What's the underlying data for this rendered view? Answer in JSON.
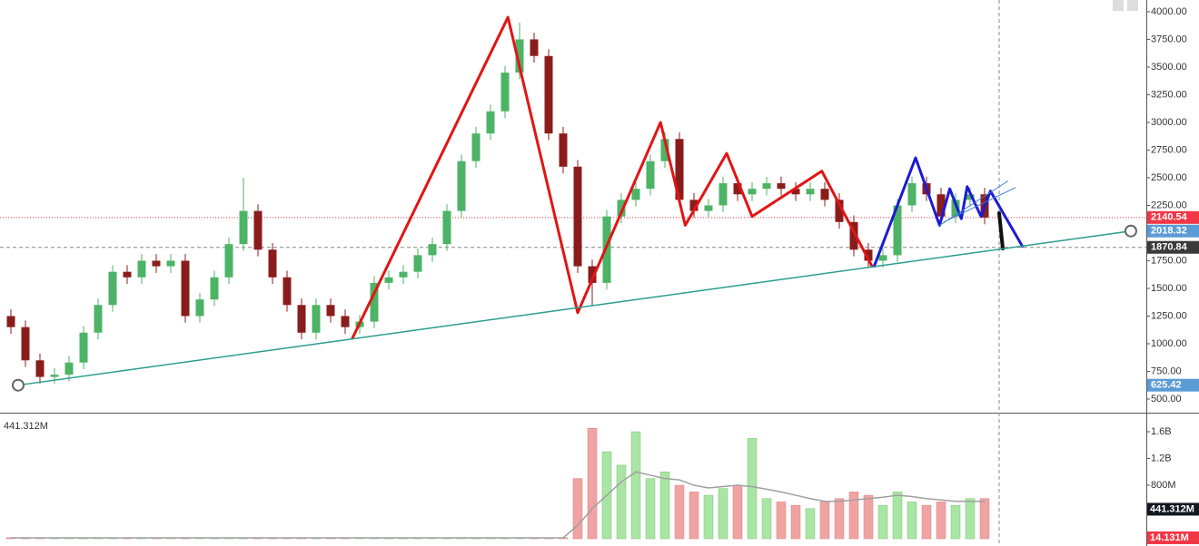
{
  "chart_data": {
    "type": "candlestick",
    "open": [
      1250,
      1150,
      850,
      700,
      720,
      830,
      1100,
      1350,
      1650,
      1600,
      1750,
      1700,
      1750,
      1250,
      1400,
      1600,
      1900,
      2200,
      1850,
      1600,
      1350,
      1100,
      1350,
      1250,
      1150,
      1200,
      1550,
      1600,
      1650,
      1800,
      1900,
      2200,
      2650,
      2900,
      3100,
      3450,
      3750,
      3600,
      2900,
      2600,
      1700,
      1550,
      2150,
      2300,
      2400,
      2650,
      2850,
      2300,
      2200,
      2250,
      2450,
      2350,
      2400,
      2450,
      2400,
      2350,
      2400,
      2300,
      2100,
      1850,
      1750,
      1800,
      2250,
      2450,
      2350,
      2150,
      2300,
      2350
    ],
    "high": [
      1310,
      1210,
      910,
      780,
      890,
      1160,
      1410,
      1710,
      1710,
      1810,
      1810,
      1810,
      1810,
      1460,
      1660,
      1960,
      2500,
      2260,
      1910,
      1660,
      1410,
      1410,
      1410,
      1310,
      1260,
      1610,
      1660,
      1710,
      1860,
      1960,
      2260,
      2710,
      2960,
      3160,
      3510,
      3900,
      3810,
      3660,
      2960,
      2660,
      1760,
      2210,
      2360,
      2460,
      2710,
      2910,
      2910,
      2360,
      2310,
      2510,
      2510,
      2460,
      2510,
      2510,
      2460,
      2460,
      2460,
      2360,
      2160,
      1910,
      1860,
      2310,
      2510,
      2510,
      2410,
      2360,
      2410,
      2410
    ],
    "low": [
      1090,
      790,
      640,
      640,
      660,
      770,
      1040,
      1290,
      1540,
      1540,
      1640,
      1640,
      1190,
      1190,
      1340,
      1540,
      1840,
      1790,
      1540,
      1290,
      1040,
      1040,
      1190,
      1090,
      1090,
      1140,
      1490,
      1540,
      1590,
      1740,
      1840,
      2140,
      2590,
      2840,
      3040,
      3390,
      3540,
      2840,
      2540,
      1640,
      1340,
      1490,
      2090,
      2240,
      2340,
      2590,
      2240,
      2140,
      2140,
      2190,
      2290,
      2290,
      2340,
      2340,
      2290,
      2290,
      2240,
      2040,
      1790,
      1690,
      1690,
      1740,
      2190,
      2290,
      2090,
      2090,
      2240,
      2080
    ],
    "close": [
      1150,
      850,
      700,
      720,
      830,
      1100,
      1350,
      1650,
      1600,
      1750,
      1700,
      1750,
      1250,
      1400,
      1600,
      1900,
      2200,
      1850,
      1600,
      1350,
      1100,
      1350,
      1250,
      1150,
      1200,
      1550,
      1600,
      1650,
      1800,
      1900,
      2200,
      2650,
      2900,
      3100,
      3450,
      3750,
      3600,
      2900,
      2600,
      1700,
      1550,
      2150,
      2300,
      2400,
      2650,
      2850,
      2300,
      2200,
      2250,
      2450,
      2350,
      2400,
      2450,
      2400,
      2350,
      2400,
      2300,
      2100,
      1850,
      1750,
      1800,
      2250,
      2450,
      2350,
      2150,
      2300,
      2350,
      2140
    ],
    "up_color": "#4db366",
    "down_color": "#8b1c1c",
    "ylim": [
      377,
      4106
    ],
    "yticks": [
      {
        "value": 500,
        "label": "500.00"
      },
      {
        "value": 750,
        "label": "750.00"
      },
      {
        "value": 1000,
        "label": "1000.00"
      },
      {
        "value": 1250,
        "label": "1250.00"
      },
      {
        "value": 1500,
        "label": "1500.00"
      },
      {
        "value": 1750,
        "label": "1750.00"
      },
      {
        "value": 2000,
        "label": "2000.00"
      },
      {
        "value": 2250,
        "label": "2250.00"
      },
      {
        "value": 2500,
        "label": "2500.00"
      },
      {
        "value": 2750,
        "label": "2750.00"
      },
      {
        "value": 3000,
        "label": "3000.00"
      },
      {
        "value": 3250,
        "label": "3250.00"
      },
      {
        "value": 3500,
        "label": "3500.00"
      },
      {
        "value": 3750,
        "label": "3750.00"
      },
      {
        "value": 4000,
        "label": "4000.00"
      }
    ],
    "price_labels": [
      {
        "value": 2140.54,
        "label": "2140.54",
        "color": "#f23645",
        "line": "dotted"
      },
      {
        "value": 2018.32,
        "label": "2018.32",
        "color": "#5b9bd5"
      },
      {
        "value": 1870.84,
        "label": "1870.84",
        "color": "#3a3a3a",
        "line": "dashed"
      },
      {
        "value": 625.42,
        "label": "625.42",
        "color": "#5b9bd5"
      }
    ],
    "crosshair_x": 68,
    "drawings": [
      {
        "color": "#e31414",
        "width": 3,
        "points": [
          [
            23.5,
            1050
          ],
          [
            34.2,
            3950
          ],
          [
            39,
            1280
          ],
          [
            44.7,
            3000
          ],
          [
            46.4,
            2070
          ],
          [
            49.25,
            2720
          ],
          [
            51,
            2150
          ],
          [
            55.8,
            2560
          ],
          [
            59.25,
            1700
          ]
        ]
      },
      {
        "color": "#1a1ad6",
        "width": 3,
        "points": [
          [
            59.4,
            1700
          ],
          [
            62.25,
            2680
          ],
          [
            63.9,
            2070
          ],
          [
            64.6,
            2400
          ],
          [
            65.4,
            2130
          ],
          [
            65.8,
            2420
          ],
          [
            66.75,
            2150
          ],
          [
            67.4,
            2380
          ],
          [
            69.6,
            1880
          ]
        ]
      },
      {
        "color": "#111111",
        "width": 4,
        "points": [
          [
            68,
            2180
          ],
          [
            68.25,
            1860
          ]
        ]
      },
      {
        "color": "#2a9d8f",
        "width": 1.5,
        "points": [
          [
            0.5,
            625.42
          ],
          [
            77.06,
            2018.32
          ]
        ],
        "ends": true
      },
      {
        "color": "#3b7dd8",
        "width": 1,
        "points": [
          [
            63.9,
            2070
          ],
          [
            68.6,
            2470
          ]
        ]
      },
      {
        "color": "#3b7dd8",
        "width": 1,
        "points": [
          [
            64.2,
            2100
          ],
          [
            69.1,
            2410
          ]
        ]
      }
    ],
    "volume": {
      "values": [
        15,
        15,
        15,
        15,
        15,
        15,
        15,
        15,
        15,
        15,
        15,
        15,
        15,
        15,
        15,
        15,
        15,
        15,
        15,
        15,
        15,
        15,
        15,
        15,
        15,
        15,
        15,
        15,
        15,
        15,
        15,
        15,
        15,
        15,
        15,
        15,
        15,
        15,
        15,
        900,
        1650,
        1300,
        1100,
        1600,
        900,
        1000,
        800,
        700,
        650,
        750,
        800,
        1500,
        600,
        550,
        500,
        450,
        550,
        600,
        700,
        650,
        500,
        700,
        550,
        500,
        550,
        500,
        600,
        600
      ],
      "ma": [
        14,
        14,
        14,
        14,
        14,
        14,
        14,
        14,
        14,
        14,
        14,
        14,
        14,
        14,
        14,
        14,
        14,
        14,
        14,
        14,
        14,
        14,
        14,
        14,
        14,
        14,
        14,
        14,
        14,
        14,
        14,
        14,
        14,
        14,
        14,
        14,
        14,
        14,
        14,
        200,
        450,
        650,
        850,
        1000,
        950,
        900,
        880,
        800,
        760,
        780,
        800,
        780,
        740,
        700,
        650,
        600,
        560,
        560,
        580,
        600,
        620,
        650,
        630,
        600,
        580,
        560,
        560,
        560
      ],
      "up_color": "#a9e5a4",
      "down_color": "#f0a3a3",
      "ma_color": "#a0a0a0",
      "ylim": [
        0,
        1871
      ],
      "yticks": [
        {
          "value": 800,
          "label": "800M"
        },
        {
          "value": 1200,
          "label": "1.2B"
        },
        {
          "value": 1600,
          "label": "1.6B"
        }
      ],
      "legend": "441.312M",
      "labels": [
        {
          "value": 441.312,
          "label": "441.312M",
          "color": "#131722"
        },
        {
          "value": 14.131,
          "label": "14.131M",
          "color": "#f23645"
        }
      ]
    }
  }
}
